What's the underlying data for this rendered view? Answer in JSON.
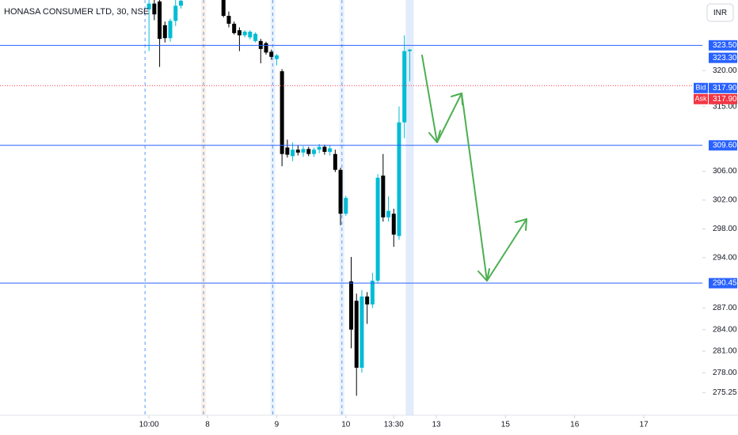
{
  "chart_data": {
    "type": "candlestick",
    "title": "HONASA CONSUMER LTD, 30, NSE",
    "currency": "INR",
    "up_color": "#00bcd4",
    "down_color": "#000000",
    "x": [
      0,
      1,
      2,
      3,
      4,
      5,
      6,
      14,
      15,
      16,
      17,
      18,
      19,
      20,
      21,
      22,
      23,
      24,
      25,
      26,
      27,
      28,
      29,
      30,
      31,
      32,
      33,
      34,
      35,
      36,
      37,
      38,
      39,
      40,
      41,
      42,
      43,
      44,
      45,
      46,
      47,
      48,
      49
    ],
    "open": [
      328.5,
      329.3,
      329.6,
      326.3,
      324.5,
      326.9,
      329.0,
      329.8,
      327.6,
      326.5,
      325.6,
      324.9,
      324.6,
      324.1,
      324.1,
      323.8,
      322.6,
      321.6,
      319.9,
      309.3,
      308.1,
      309.0,
      308.6,
      309.1,
      308.4,
      309.0,
      309.4,
      308.7,
      308.4,
      306.2,
      300.1,
      290.7,
      288.0,
      278.7,
      288.6,
      287.5,
      290.8,
      305.4,
      299.6,
      300.1,
      297.0,
      312.8,
      322.7
    ],
    "high": [
      329.8,
      329.8,
      329.8,
      326.8,
      327.2,
      329.8,
      329.8,
      329.8,
      328.2,
      326.8,
      326.0,
      325.6,
      325.6,
      325.3,
      324.4,
      324.0,
      322.9,
      322.3,
      320.2,
      310.4,
      310.0,
      309.6,
      309.5,
      309.4,
      309.3,
      309.8,
      309.7,
      309.6,
      309.0,
      306.5,
      302.6,
      294.1,
      289.0,
      289.5,
      289.2,
      291.9,
      305.6,
      308.4,
      302.5,
      300.8,
      315.0,
      324.9,
      323.0
    ],
    "low": [
      322.7,
      327.0,
      320.5,
      323.9,
      324.0,
      326.2,
      328.6,
      327.4,
      326.0,
      325.0,
      322.7,
      324.6,
      324.3,
      323.9,
      321.0,
      322.2,
      321.5,
      320.7,
      306.7,
      307.9,
      307.4,
      308.2,
      308.0,
      308.1,
      308.0,
      308.5,
      308.3,
      308.2,
      305.9,
      298.5,
      299.8,
      281.4,
      274.8,
      278.0,
      284.8,
      287.0,
      290.5,
      299.0,
      299.0,
      295.5,
      296.5,
      310.6,
      318.5
    ],
    "close": [
      329.3,
      327.8,
      324.4,
      324.5,
      326.9,
      329.0,
      329.7,
      327.6,
      326.5,
      325.2,
      324.9,
      325.4,
      325.4,
      325.1,
      323.0,
      322.5,
      321.9,
      322.1,
      308.4,
      308.3,
      309.0,
      308.6,
      309.1,
      308.4,
      309.0,
      309.4,
      308.7,
      309.2,
      306.2,
      300.1,
      302.3,
      284.0,
      278.7,
      288.6,
      287.5,
      290.8,
      305.1,
      299.6,
      300.5,
      297.2,
      312.8,
      322.7,
      322.9
    ],
    "xlim": [
      -28,
      104
    ],
    "xticks": [
      {
        "value": 0,
        "label": "10:00"
      },
      {
        "value": 11,
        "label": "8"
      },
      {
        "value": 24,
        "label": "9"
      },
      {
        "value": 37,
        "label": "10"
      },
      {
        "value": 46,
        "label": "13:30"
      },
      {
        "value": 54,
        "label": "13"
      },
      {
        "value": 67,
        "label": "15"
      },
      {
        "value": 80,
        "label": "16"
      },
      {
        "value": 93,
        "label": "17"
      }
    ],
    "ylim": [
      272.1,
      329.8
    ],
    "yticks": [
      {
        "value": 320,
        "label": "320.00"
      },
      {
        "value": 315,
        "label": "315.00"
      },
      {
        "value": 306,
        "label": "306.00"
      },
      {
        "value": 302,
        "label": "302.00"
      },
      {
        "value": 298,
        "label": "298.00"
      },
      {
        "value": 294,
        "label": "294.00"
      },
      {
        "value": 287,
        "label": "287.00"
      },
      {
        "value": 284,
        "label": "284.00"
      },
      {
        "value": 281,
        "label": "281.00"
      },
      {
        "value": 278,
        "label": "278.00"
      },
      275.25
    ],
    "horizontal_lines": [
      {
        "value": 323.5,
        "label": "323.50",
        "color": "#2962ff"
      },
      {
        "value": 309.6,
        "label": "309.60",
        "color": "#2962ff"
      },
      {
        "value": 290.45,
        "label": "290.45",
        "color": "#2962ff"
      }
    ],
    "last_price": {
      "value": 323.3,
      "label": "323.30",
      "color": "#2962ff"
    },
    "bid": {
      "name": "Bid",
      "value": 317.9,
      "label": "317.90",
      "color": "#2962ff"
    },
    "ask": {
      "name": "Ask",
      "value": 317.9,
      "label": "317.90",
      "color": "#f23645"
    }
  }
}
